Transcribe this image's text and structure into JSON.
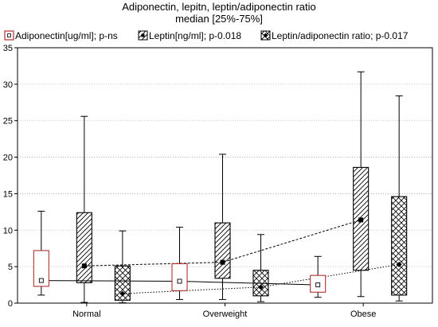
{
  "chart_data": {
    "type": "box",
    "title": [
      "Adiponectin, lepitn, leptin/adiponectin ratio",
      "median [25%-75%]"
    ],
    "categories": [
      "Normal",
      "Overweight",
      "Obese"
    ],
    "ylim": [
      0,
      35
    ],
    "yticks": [
      0,
      5,
      10,
      15,
      20,
      25,
      30,
      35
    ],
    "series": [
      {
        "name": "Adiponectin[ug/ml]; p-ns",
        "legend_label": "Adiponectin[ug/ml]; p-ns",
        "style": "open-red",
        "marker": "open-square",
        "connector": "solid",
        "boxes": [
          {
            "min": 1.1,
            "q1": 2.3,
            "median": 3.1,
            "q3": 7.2,
            "max": 12.6
          },
          {
            "min": 0.5,
            "q1": 1.7,
            "median": 3.0,
            "q3": 5.4,
            "max": 10.4
          },
          {
            "min": 0.8,
            "q1": 1.5,
            "median": 2.5,
            "q3": 3.8,
            "max": 6.4
          }
        ]
      },
      {
        "name": "Leptin[ng/ml]; p-0.018",
        "legend_label": "Leptin[ng/ml]; p-0.018",
        "style": "diagonal-hatch",
        "marker": "filled-square",
        "connector": "dashed",
        "boxes": [
          {
            "min": 0.1,
            "q1": 2.8,
            "median": 5.1,
            "q3": 12.4,
            "max": 25.6
          },
          {
            "min": 0.5,
            "q1": 3.4,
            "median": 5.6,
            "q3": 11.0,
            "max": 20.4
          },
          {
            "min": 0.9,
            "q1": 4.5,
            "median": 11.4,
            "q3": 18.6,
            "max": 31.7
          }
        ]
      },
      {
        "name": "Leptin/adiponectin ratio; p-0.017",
        "legend_label": "Leptin/adiponectin ratio; p-0.017",
        "style": "cross-hatch",
        "marker": "filled-diamond",
        "connector": "dotted",
        "boxes": [
          {
            "min": 0.05,
            "q1": 0.4,
            "median": 1.3,
            "q3": 5.1,
            "max": 9.9
          },
          {
            "min": 0.2,
            "q1": 1.0,
            "median": 2.2,
            "q3": 4.5,
            "max": 9.4
          },
          {
            "min": 0.3,
            "q1": 1.1,
            "median": 5.3,
            "q3": 14.6,
            "max": 28.4
          }
        ]
      }
    ],
    "grid": {
      "horizontal": true,
      "vertical": false,
      "style": "dotted"
    },
    "legend_placement": "top"
  },
  "colors": {
    "adiponectin_box": "#b03030",
    "axis": "#000000",
    "grid": "#b0b0b0",
    "ink": "#000000",
    "background": "#ffffff"
  }
}
